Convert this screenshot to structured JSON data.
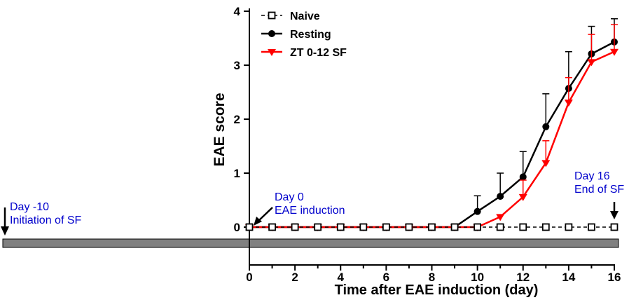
{
  "chart_data": {
    "type": "line",
    "title": "",
    "xlabel": "Time after EAE induction (day)",
    "ylabel": "EAE score",
    "xlim": [
      0,
      16
    ],
    "ylim": [
      0,
      4
    ],
    "x_ticks": [
      "0",
      "2",
      "4",
      "6",
      "8",
      "10",
      "12",
      "14",
      "16"
    ],
    "y_ticks": [
      "0",
      "1",
      "2",
      "3",
      "4"
    ],
    "grid": false,
    "legend": "top-left",
    "x": [
      0,
      1,
      2,
      3,
      4,
      5,
      6,
      7,
      8,
      9,
      10,
      11,
      12,
      13,
      14,
      15,
      16
    ],
    "series": [
      {
        "name": "Naive",
        "marker": "open-square",
        "line": "dashed",
        "color": "#000000",
        "values": [
          0,
          0,
          0,
          0,
          0,
          0,
          0,
          0,
          0,
          0,
          0,
          0,
          0,
          0,
          0,
          0,
          0
        ],
        "error": []
      },
      {
        "name": "Resting",
        "marker": "filled-circle",
        "line": "solid",
        "color": "#000000",
        "values": [
          0,
          0,
          0,
          0,
          0,
          0,
          0,
          0,
          0,
          0,
          0.29,
          0.57,
          0.93,
          1.86,
          2.57,
          3.21,
          3.43
        ],
        "error": [
          0,
          0,
          0,
          0,
          0,
          0,
          0,
          0,
          0,
          0,
          0.29,
          0.43,
          0.47,
          0.61,
          0.68,
          0.51,
          0.43
        ]
      },
      {
        "name": "ZT 0-12 SF",
        "marker": "filled-triangle-down",
        "line": "solid",
        "color": "#ff0000",
        "values": [
          0,
          0,
          0,
          0,
          0,
          0,
          0,
          0,
          0,
          0,
          0,
          0.19,
          0.56,
          1.19,
          2.31,
          3.06,
          3.25
        ],
        "error": [
          0,
          0,
          0,
          0,
          0,
          0,
          0,
          0,
          0,
          0,
          0,
          0,
          0.31,
          0.41,
          0.46,
          0.51,
          0.5
        ]
      }
    ],
    "annotations": [
      {
        "line1": "Day -10",
        "line2": "Initiation of SF",
        "color": "#0000cc"
      },
      {
        "line1": "Day 0",
        "line2": "EAE induction",
        "color": "#0000cc"
      },
      {
        "line1": "Day 16",
        "line2": "End of SF",
        "color": "#0000cc"
      }
    ],
    "timeline_bar_color": "#808080"
  }
}
